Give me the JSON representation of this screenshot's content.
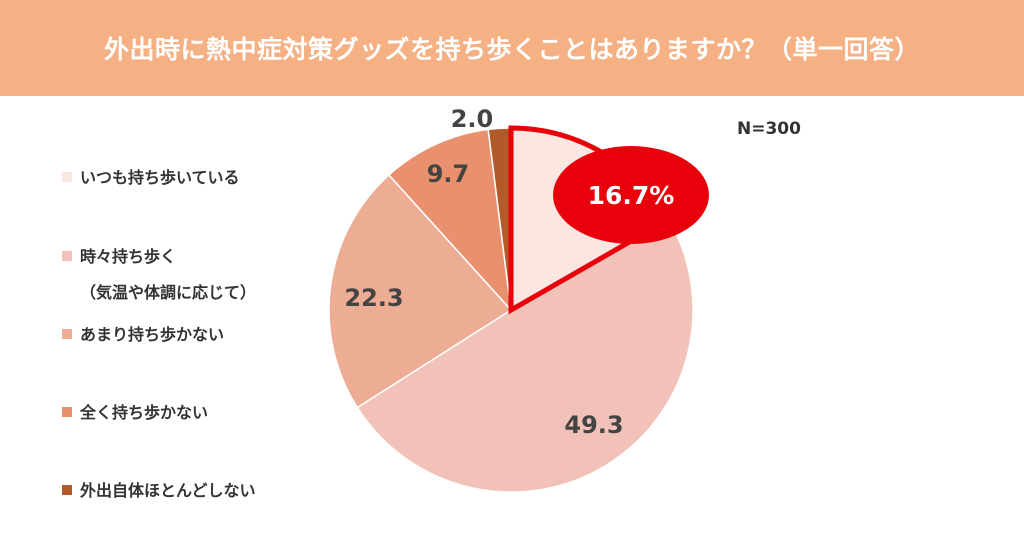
{
  "header": {
    "title": "外出時に熱中症対策グッズを持ち歩くことはありますか？（単一回答）"
  },
  "sample": {
    "n_label": "N=300"
  },
  "chart_data": {
    "type": "pie",
    "title": "外出時に熱中症対策グッズを持ち歩くことはありますか？（単一回答）",
    "slices": [
      {
        "name": "いつも持ち歩いている",
        "value": 16.7,
        "color": "#fbe6e2"
      },
      {
        "name": "時々持ち歩く（気温や体調に応じて）",
        "name_line1": "時々持ち歩く",
        "name_line2": "（気温や体調に応じて）",
        "value": 49.3,
        "color": "#f2c1b7"
      },
      {
        "name": "あまり持ち歩かない",
        "value": 22.3,
        "color": "#edac94"
      },
      {
        "name": "全く持ち歩かない",
        "value": 9.7,
        "color": "#e9916e"
      },
      {
        "name": "外出自体ほとんどしない",
        "value": 2.0,
        "color": "#b35a2b"
      }
    ],
    "data_labels": [
      "16.7%",
      "49.3",
      "22.3",
      "9.7",
      "2.0"
    ],
    "highlight": {
      "slice_index": 0,
      "color": "#e8000b"
    },
    "legend": "left",
    "start": "12 o'clock",
    "direction": "clockwise"
  }
}
